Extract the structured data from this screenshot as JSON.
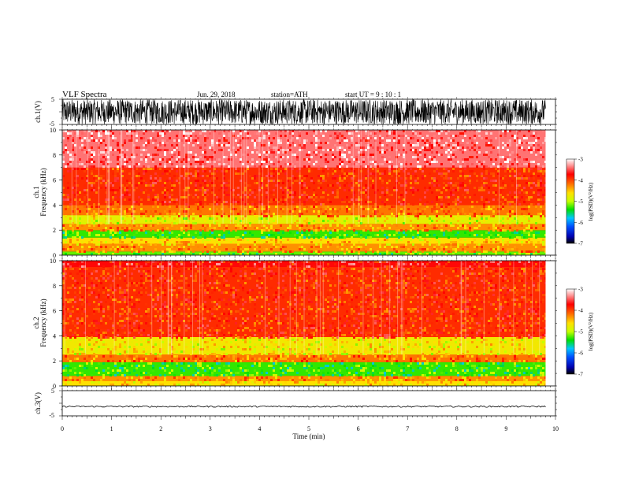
{
  "header": {
    "title": "VLF  Spectra",
    "date": "Jun. 29, 2018",
    "station": "station=ATH",
    "start": "start  UT  =    9  : 10 : 1"
  },
  "chart_data": [
    {
      "id": "ch1-waveform",
      "type": "line",
      "ylabel": "ch.1(V)",
      "ylim": [
        -5,
        5
      ],
      "yticks": [
        5,
        -5
      ],
      "xlim": [
        0,
        10
      ],
      "data_xmax": 9.8,
      "amplitude_range": [
        -5,
        5
      ],
      "color": "#000000"
    },
    {
      "id": "ch1-spectrogram",
      "type": "heatmap",
      "ylabel_top": "ch.1",
      "ylabel": "Frequency  (kHz)",
      "ylim": [
        0,
        10
      ],
      "yticks": [
        0,
        2,
        4,
        6,
        8,
        10
      ],
      "xlim": [
        0,
        10
      ],
      "data_xmax": 9.8,
      "colorbar": {
        "label": "log(PSD)(V²/Hz)",
        "range": [
          -7,
          -3
        ],
        "ticks": [
          "-3",
          "-4",
          "-5",
          "-6",
          "-7"
        ]
      },
      "bands": [
        {
          "from": 0,
          "to": 0.3,
          "level": -5.2
        },
        {
          "from": 0.3,
          "to": 0.9,
          "level": -4.3
        },
        {
          "from": 0.9,
          "to": 1.4,
          "level": -4.6
        },
        {
          "from": 1.4,
          "to": 2.0,
          "level": -5.3
        },
        {
          "from": 2.0,
          "to": 2.5,
          "level": -4.3
        },
        {
          "from": 2.5,
          "to": 3.2,
          "level": -4.8
        },
        {
          "from": 3.2,
          "to": 4.0,
          "level": -4.2
        },
        {
          "from": 4.0,
          "to": 7.0,
          "level": -3.9
        },
        {
          "from": 7.0,
          "to": 10.0,
          "level": -3.4
        }
      ]
    },
    {
      "id": "ch2-spectrogram",
      "type": "heatmap",
      "ylabel_top": "ch.2",
      "ylabel": "Frequency  (kHz)",
      "ylim": [
        0,
        10
      ],
      "yticks": [
        0,
        2,
        4,
        6,
        8,
        10
      ],
      "xlim": [
        0,
        10
      ],
      "data_xmax": 9.8,
      "colorbar": {
        "label": "log(PSD)(V²/Hz)",
        "range": [
          -7,
          -3
        ],
        "ticks": [
          "-3",
          "-4",
          "-5",
          "-6",
          "-7"
        ]
      },
      "bands": [
        {
          "from": 0,
          "to": 0.4,
          "level": -4.6
        },
        {
          "from": 0.4,
          "to": 0.8,
          "level": -4.3
        },
        {
          "from": 0.8,
          "to": 1.9,
          "level": -5.3
        },
        {
          "from": 1.9,
          "to": 2.5,
          "level": -4.2
        },
        {
          "from": 2.5,
          "to": 3.9,
          "level": -4.7
        },
        {
          "from": 3.9,
          "to": 9.5,
          "level": -3.9
        },
        {
          "from": 9.5,
          "to": 10.0,
          "level": -3.7
        }
      ]
    },
    {
      "id": "ch3-waveform",
      "type": "line",
      "ylabel": "ch.3(V)",
      "ylim": [
        -5,
        5
      ],
      "yticks": [
        5,
        -5
      ],
      "xlim": [
        0,
        10
      ],
      "data_xmax": 9.8,
      "amplitude_range": [
        -1.6,
        -1.0
      ],
      "color": "#000000"
    }
  ],
  "xaxis": {
    "label": "Time  (min)",
    "ticks": [
      "0",
      "1",
      "2",
      "3",
      "4",
      "5",
      "6",
      "7",
      "8",
      "9",
      "10"
    ]
  }
}
